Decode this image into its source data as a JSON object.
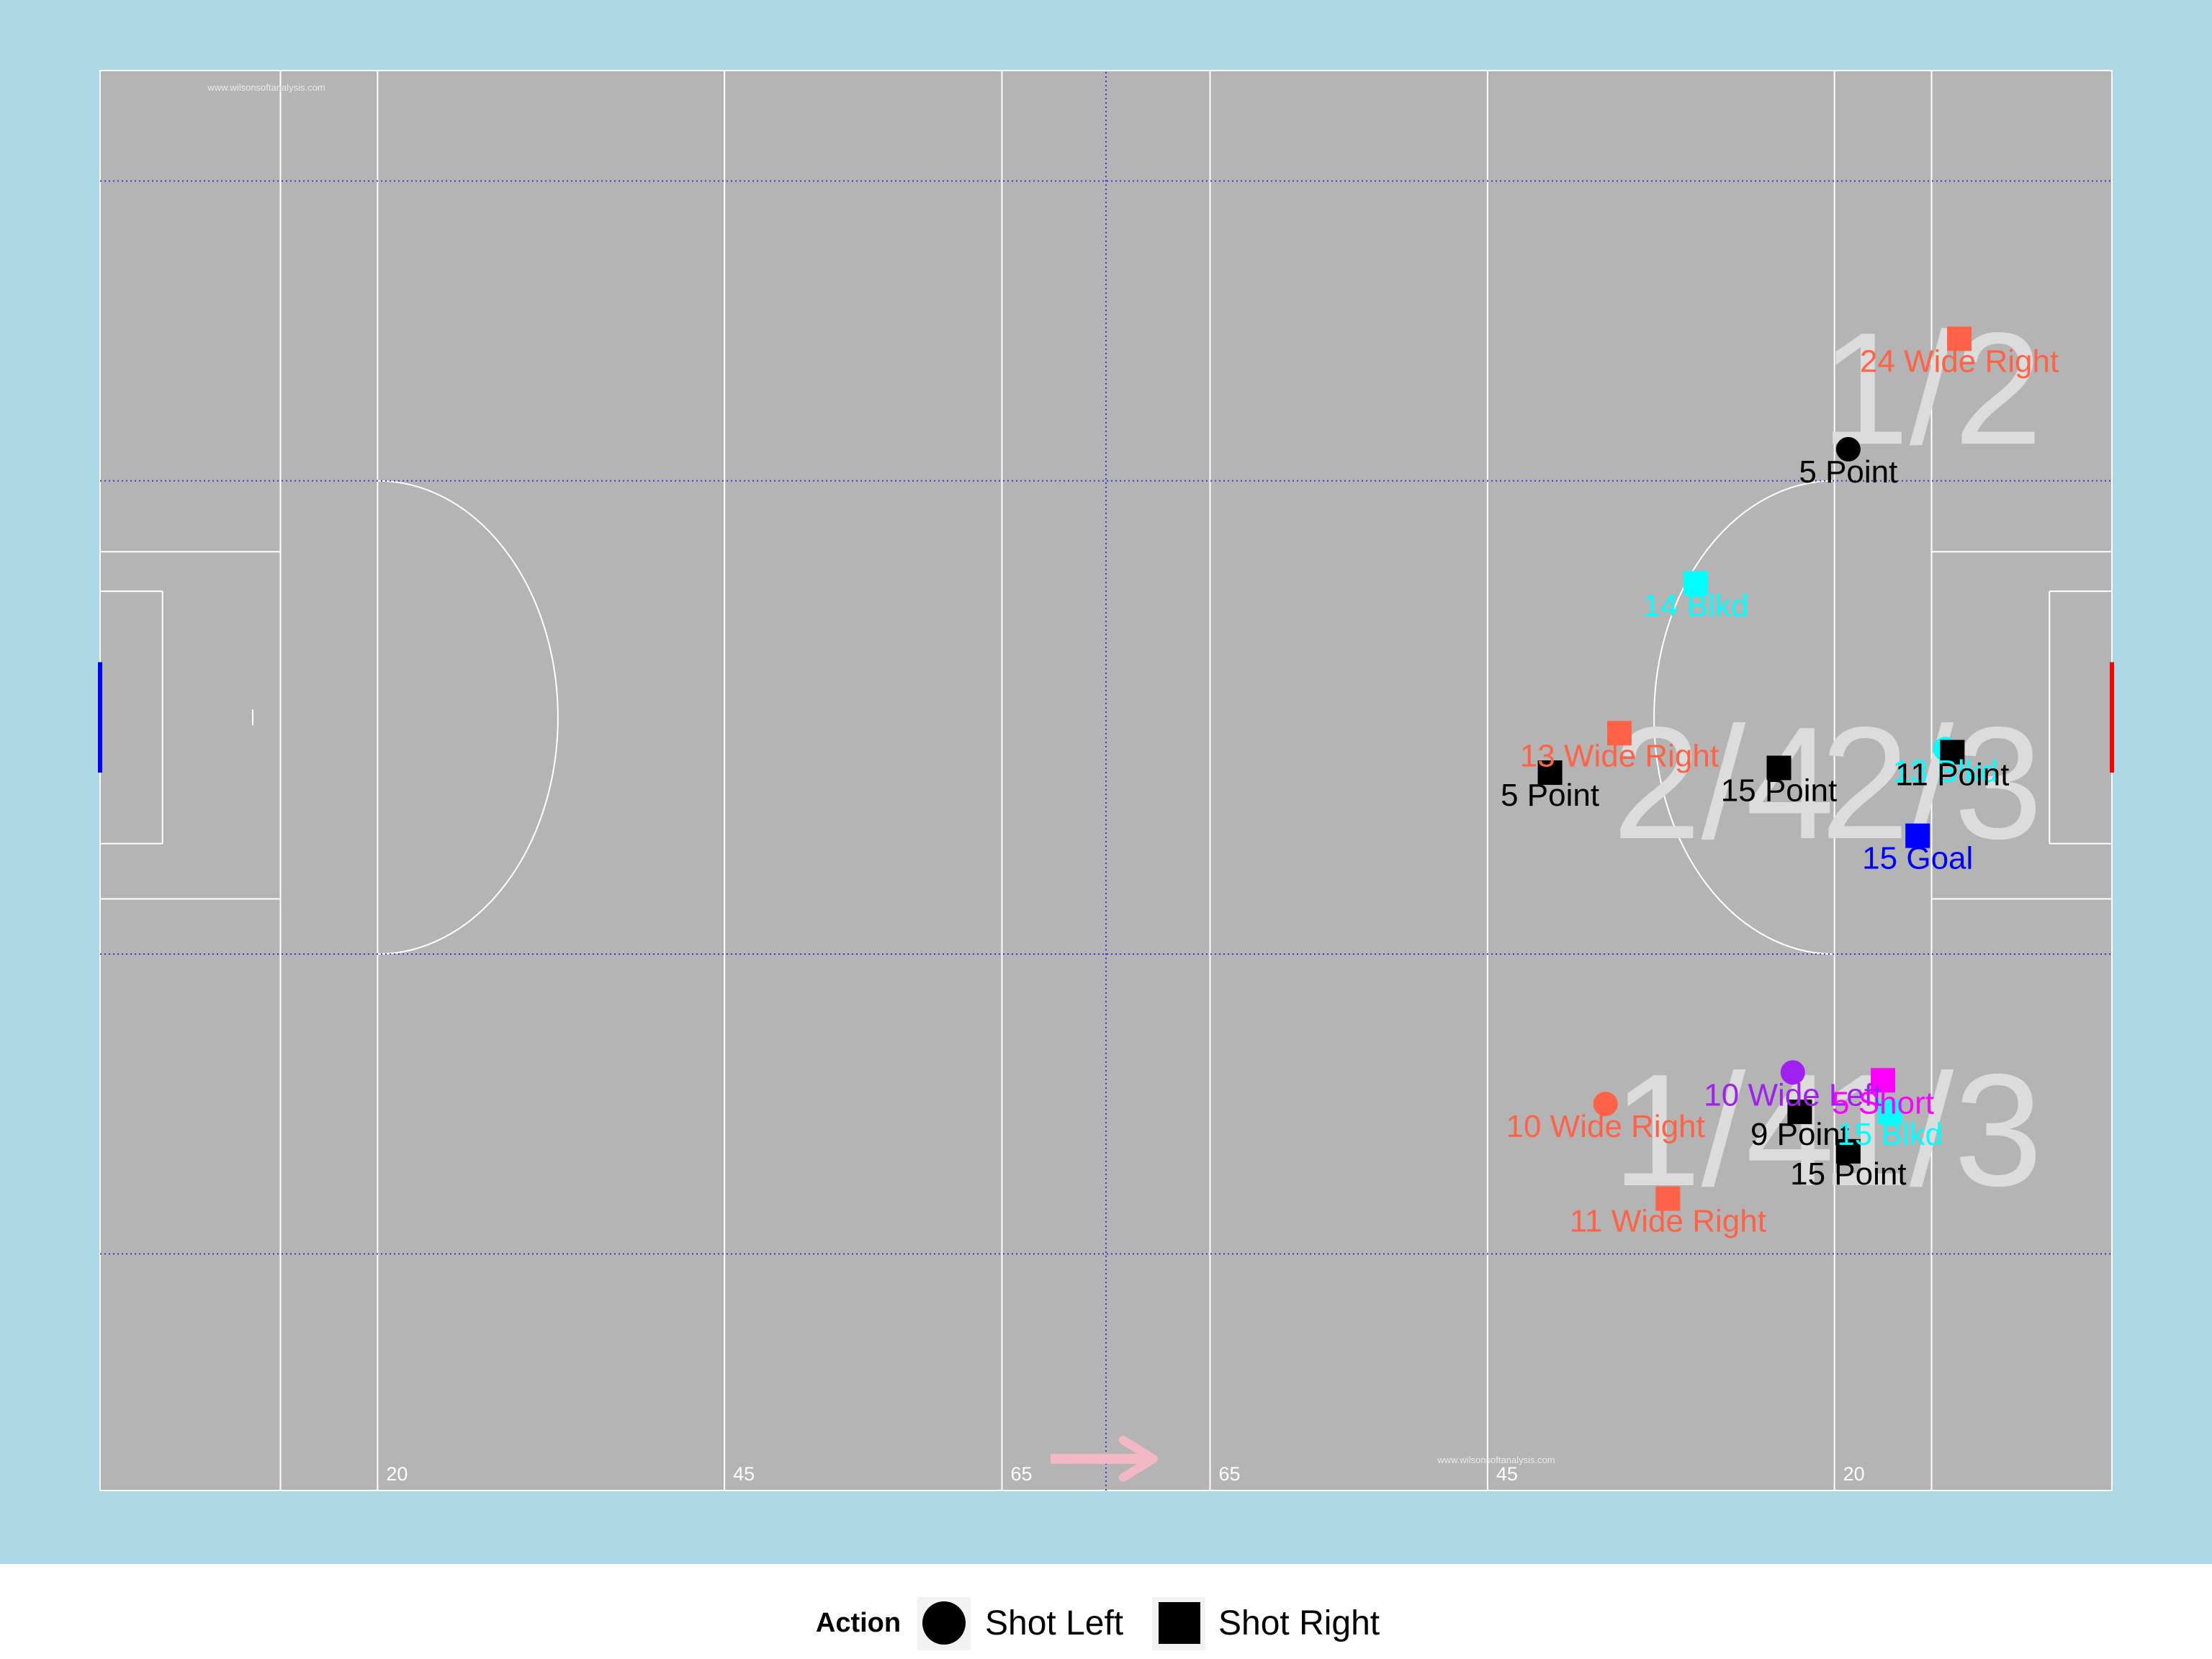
{
  "colors": {
    "background": "#ADD8E6",
    "pitch": "#B4B4B4",
    "lines": "#FFFFFF",
    "grid": "#3A3AD8",
    "zone_label": "#DCDCDC",
    "left_goal": "#0000FF",
    "right_goal": "#FF0000",
    "arrow": "#F4B8C4",
    "legend_bg": "#FFFFFF"
  },
  "watermarks": [
    "www.wilsonsoftanalysis.com",
    "www.wilsonsoftanalysis.com"
  ],
  "chart_data": {
    "type": "scatter",
    "x_meaning": "metres along pitch (0 = left end line, 145 = right end line)",
    "y_meaning": "metres across pitch (0 = bottom touchline, 90 = top touchline)",
    "xlim": [
      0,
      145
    ],
    "ylim": [
      0,
      90
    ],
    "yard_labels": [
      {
        "text": "20",
        "x": 20
      },
      {
        "text": "45",
        "x": 45
      },
      {
        "text": "65",
        "x": 65
      },
      {
        "text": "65",
        "x": 80
      },
      {
        "text": "45",
        "x": 100
      },
      {
        "text": "20",
        "x": 125
      }
    ],
    "zone_labels": [
      {
        "text": "1/2",
        "x": 132,
        "y": 70
      },
      {
        "text": "2/4",
        "x": 117,
        "y": 45
      },
      {
        "text": "2/3",
        "x": 132,
        "y": 45
      },
      {
        "text": "1/4",
        "x": 117,
        "y": 23
      },
      {
        "text": "1/3",
        "x": 132,
        "y": 23
      }
    ],
    "points": [
      {
        "x": 134,
        "y": 73,
        "shape": "square",
        "color": "#FF6347",
        "label": "24 Wide Right"
      },
      {
        "x": 126,
        "y": 66,
        "shape": "circle",
        "color": "#000000",
        "label": "5 Point"
      },
      {
        "x": 115,
        "y": 57.5,
        "shape": "square",
        "color": "#00FFFF",
        "label": "14 Blkd"
      },
      {
        "x": 109.5,
        "y": 48,
        "shape": "square",
        "color": "#FF6347",
        "label": "13 Wide Right"
      },
      {
        "x": 104.5,
        "y": 45.5,
        "shape": "square",
        "color": "#000000",
        "label": "5 Point"
      },
      {
        "x": 121,
        "y": 45.8,
        "shape": "square",
        "color": "#000000",
        "label": "15 Point"
      },
      {
        "x": 133,
        "y": 47,
        "shape": "circle",
        "color": "#00FFFF",
        "label": "13 Blkd"
      },
      {
        "x": 133.5,
        "y": 46.8,
        "shape": "square",
        "color": "#000000",
        "label": "11 Point"
      },
      {
        "x": 131,
        "y": 41.5,
        "shape": "square",
        "color": "#0000FF",
        "label": "15 Goal"
      },
      {
        "x": 122,
        "y": 26.5,
        "shape": "circle",
        "color": "#A020F0",
        "label": "10 Wide Left"
      },
      {
        "x": 128.5,
        "y": 26,
        "shape": "square",
        "color": "#FF00FF",
        "label": "5 Short"
      },
      {
        "x": 108.5,
        "y": 24.5,
        "shape": "circle",
        "color": "#FF6347",
        "label": "10 Wide Right"
      },
      {
        "x": 122.5,
        "y": 24,
        "shape": "square",
        "color": "#000000",
        "label": "9 Point"
      },
      {
        "x": 129,
        "y": 24,
        "shape": "square",
        "color": "#00FFFF",
        "label": "15 Blkd"
      },
      {
        "x": 126,
        "y": 21.5,
        "shape": "square",
        "color": "#000000",
        "label": "15 Point"
      },
      {
        "x": 113,
        "y": 18.5,
        "shape": "square",
        "color": "#FF6347",
        "label": "11 Wide Right"
      }
    ],
    "legend": {
      "title": "Action",
      "placement": "bottom-center",
      "items": [
        {
          "shape": "circle",
          "label": "Shot Left"
        },
        {
          "shape": "square",
          "label": "Shot Right"
        }
      ]
    }
  }
}
